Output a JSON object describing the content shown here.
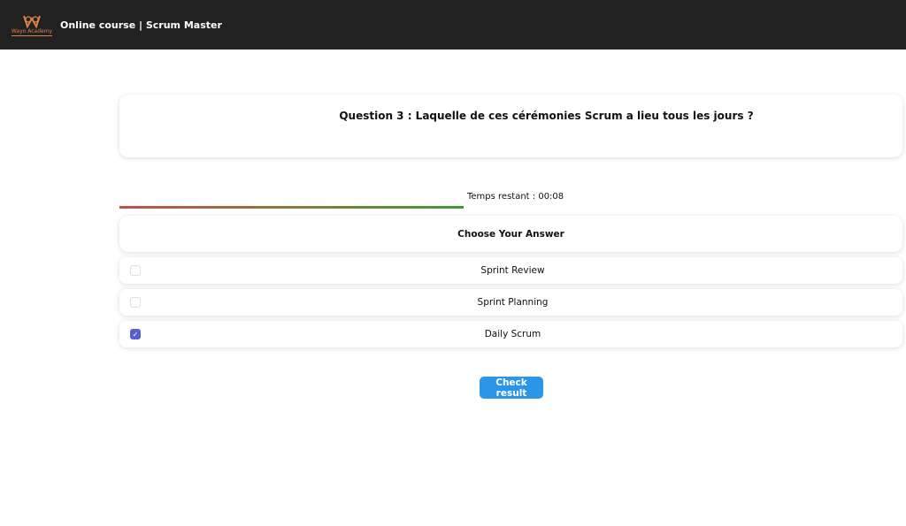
{
  "header": {
    "logo_text": "Wayo Academy",
    "title": "Online course | Scrum Master"
  },
  "question": {
    "text": "Question 3 : Laquelle de ces cérémonies Scrum a lieu tous les jours ?"
  },
  "timer": {
    "label": "Temps restant : 00:08",
    "progress_percent": 44
  },
  "answers": {
    "heading": "Choose Your Answer",
    "options": [
      {
        "label": "Sprint Review",
        "checked": false
      },
      {
        "label": "Sprint Planning",
        "checked": false
      },
      {
        "label": "Daily Scrum",
        "checked": true
      }
    ]
  },
  "actions": {
    "check_label": "Check result"
  },
  "colors": {
    "header_bg": "#222121",
    "accent": "#2b95e8",
    "checkbox": "#5563c9",
    "logo": "#d9824a"
  }
}
